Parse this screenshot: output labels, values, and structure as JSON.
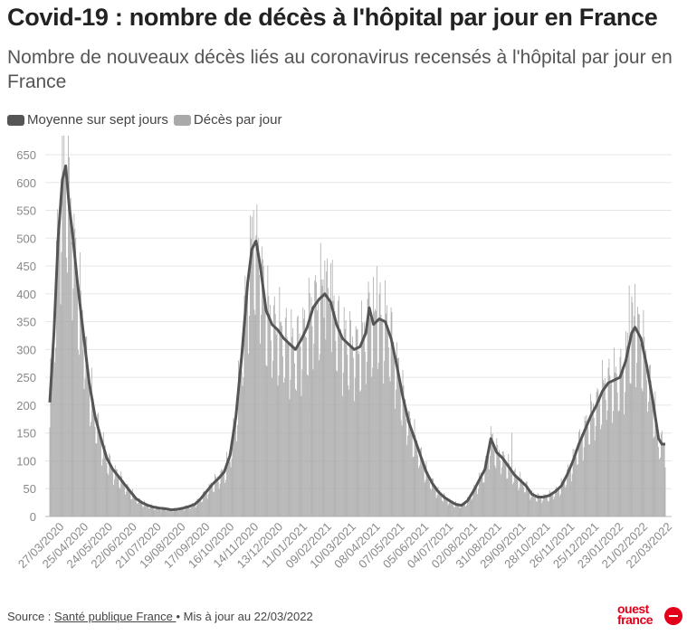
{
  "header": {
    "title": "Covid-19 : nombre de décès à l'hôpital par jour en France",
    "subtitle": "Nombre de nouveaux décès liés au coronavirus recensés à l'hôpital par jour en France"
  },
  "legend": {
    "items": [
      {
        "label": "Moyenne sur sept jours",
        "color": "#555555"
      },
      {
        "label": "Décès par jour",
        "color": "#a9a9a9"
      }
    ]
  },
  "footer": {
    "prefix": "Source : ",
    "source_link": "Santé publique France ",
    "suffix": "• Mis à jour au 22/03/2022"
  },
  "logo": {
    "line1": "ouest",
    "line2": "france",
    "color": "#e2001a"
  },
  "chart_data": {
    "type": "bar",
    "title": "Covid-19 : nombre de décès à l'hôpital par jour en France",
    "subtitle": "Nombre de nouveaux décès liés au coronavirus recensés à l'hôpital par jour en France",
    "xlabel": "",
    "ylabel": "",
    "ylim": [
      0,
      650
    ],
    "yticks": [
      0,
      50,
      100,
      150,
      200,
      250,
      300,
      350,
      400,
      450,
      500,
      550,
      600,
      650
    ],
    "grid": true,
    "legend_position": "top-left",
    "x_range": [
      "2020-03-18",
      "2022-03-22"
    ],
    "xtick_labels": [
      "27/03/2020",
      "25/04/2020",
      "24/05/2020",
      "22/06/2020",
      "21/07/2020",
      "19/08/2020",
      "17/09/2020",
      "16/10/2020",
      "14/11/2020",
      "13/12/2020",
      "11/01/2021",
      "09/02/2021",
      "10/03/2021",
      "08/04/2021",
      "07/05/2021",
      "05/06/2021",
      "04/07/2021",
      "02/08/2021",
      "31/08/2021",
      "29/09/2021",
      "28/10/2021",
      "26/11/2021",
      "25/12/2021",
      "23/01/2022",
      "21/02/2022",
      "22/03/2022"
    ],
    "series": [
      {
        "name": "Moyenne sur sept jours",
        "type": "line",
        "color": "#555555",
        "points": [
          [
            "2020-03-18",
            205
          ],
          [
            "2020-03-23",
            330
          ],
          [
            "2020-03-28",
            500
          ],
          [
            "2020-04-02",
            605
          ],
          [
            "2020-04-06",
            630
          ],
          [
            "2020-04-10",
            560
          ],
          [
            "2020-04-14",
            510
          ],
          [
            "2020-04-20",
            420
          ],
          [
            "2020-04-27",
            330
          ],
          [
            "2020-05-04",
            240
          ],
          [
            "2020-05-11",
            180
          ],
          [
            "2020-05-18",
            140
          ],
          [
            "2020-05-25",
            105
          ],
          [
            "2020-06-01",
            85
          ],
          [
            "2020-06-08",
            72
          ],
          [
            "2020-06-15",
            58
          ],
          [
            "2020-06-22",
            45
          ],
          [
            "2020-06-29",
            32
          ],
          [
            "2020-07-06",
            25
          ],
          [
            "2020-07-13",
            20
          ],
          [
            "2020-07-20",
            17
          ],
          [
            "2020-07-27",
            15
          ],
          [
            "2020-08-03",
            14
          ],
          [
            "2020-08-10",
            12
          ],
          [
            "2020-08-17",
            13
          ],
          [
            "2020-08-24",
            15
          ],
          [
            "2020-08-31",
            18
          ],
          [
            "2020-09-07",
            22
          ],
          [
            "2020-09-14",
            32
          ],
          [
            "2020-09-21",
            45
          ],
          [
            "2020-09-28",
            58
          ],
          [
            "2020-10-05",
            68
          ],
          [
            "2020-10-12",
            80
          ],
          [
            "2020-10-19",
            110
          ],
          [
            "2020-10-26",
            180
          ],
          [
            "2020-11-02",
            290
          ],
          [
            "2020-11-09",
            420
          ],
          [
            "2020-11-14",
            480
          ],
          [
            "2020-11-19",
            495
          ],
          [
            "2020-11-24",
            450
          ],
          [
            "2020-12-01",
            370
          ],
          [
            "2020-12-08",
            345
          ],
          [
            "2020-12-15",
            335
          ],
          [
            "2020-12-22",
            320
          ],
          [
            "2020-12-29",
            310
          ],
          [
            "2021-01-05",
            300
          ],
          [
            "2021-01-12",
            318
          ],
          [
            "2021-01-19",
            340
          ],
          [
            "2021-01-26",
            375
          ],
          [
            "2021-02-02",
            390
          ],
          [
            "2021-02-09",
            400
          ],
          [
            "2021-02-16",
            385
          ],
          [
            "2021-02-23",
            345
          ],
          [
            "2021-03-02",
            320
          ],
          [
            "2021-03-09",
            310
          ],
          [
            "2021-03-16",
            300
          ],
          [
            "2021-03-23",
            305
          ],
          [
            "2021-03-30",
            330
          ],
          [
            "2021-04-03",
            375
          ],
          [
            "2021-04-08",
            345
          ],
          [
            "2021-04-15",
            355
          ],
          [
            "2021-04-22",
            350
          ],
          [
            "2021-04-29",
            320
          ],
          [
            "2021-05-06",
            270
          ],
          [
            "2021-05-13",
            215
          ],
          [
            "2021-05-20",
            170
          ],
          [
            "2021-05-27",
            140
          ],
          [
            "2021-06-03",
            110
          ],
          [
            "2021-06-10",
            80
          ],
          [
            "2021-06-17",
            60
          ],
          [
            "2021-06-24",
            45
          ],
          [
            "2021-07-01",
            35
          ],
          [
            "2021-07-08",
            28
          ],
          [
            "2021-07-15",
            22
          ],
          [
            "2021-07-22",
            20
          ],
          [
            "2021-07-29",
            28
          ],
          [
            "2021-08-05",
            45
          ],
          [
            "2021-08-12",
            65
          ],
          [
            "2021-08-19",
            85
          ],
          [
            "2021-08-26",
            140
          ],
          [
            "2021-09-02",
            115
          ],
          [
            "2021-09-09",
            105
          ],
          [
            "2021-09-16",
            90
          ],
          [
            "2021-09-23",
            75
          ],
          [
            "2021-09-30",
            65
          ],
          [
            "2021-10-07",
            55
          ],
          [
            "2021-10-14",
            40
          ],
          [
            "2021-10-21",
            35
          ],
          [
            "2021-10-28",
            35
          ],
          [
            "2021-11-04",
            38
          ],
          [
            "2021-11-11",
            45
          ],
          [
            "2021-11-18",
            55
          ],
          [
            "2021-11-25",
            75
          ],
          [
            "2021-12-02",
            100
          ],
          [
            "2021-12-09",
            130
          ],
          [
            "2021-12-16",
            155
          ],
          [
            "2021-12-23",
            180
          ],
          [
            "2021-12-30",
            200
          ],
          [
            "2022-01-06",
            225
          ],
          [
            "2022-01-13",
            240
          ],
          [
            "2022-01-20",
            245
          ],
          [
            "2022-01-27",
            250
          ],
          [
            "2022-02-03",
            280
          ],
          [
            "2022-02-10",
            330
          ],
          [
            "2022-02-14",
            340
          ],
          [
            "2022-02-21",
            320
          ],
          [
            "2022-02-28",
            270
          ],
          [
            "2022-03-07",
            210
          ],
          [
            "2022-03-14",
            140
          ],
          [
            "2022-03-18",
            130
          ],
          [
            "2022-03-22",
            130
          ]
        ]
      },
      {
        "name": "Décès par jour",
        "type": "bar",
        "color": "#a9a9a9",
        "encoding": "daily values follow the seven-day average with weekly fluctuation (weekend lows, mid-week highs)",
        "notable_values": [
          [
            "2020-04-03",
            610
          ],
          [
            "2020-04-06",
            625
          ],
          [
            "2020-11-16",
            550
          ],
          [
            "2020-11-19",
            505
          ],
          [
            "2021-02-09",
            460
          ],
          [
            "2021-02-16",
            455
          ],
          [
            "2021-04-12",
            450
          ],
          [
            "2021-09-20",
            150
          ],
          [
            "2022-02-07",
            415
          ],
          [
            "2022-02-14",
            418
          ]
        ]
      }
    ]
  }
}
